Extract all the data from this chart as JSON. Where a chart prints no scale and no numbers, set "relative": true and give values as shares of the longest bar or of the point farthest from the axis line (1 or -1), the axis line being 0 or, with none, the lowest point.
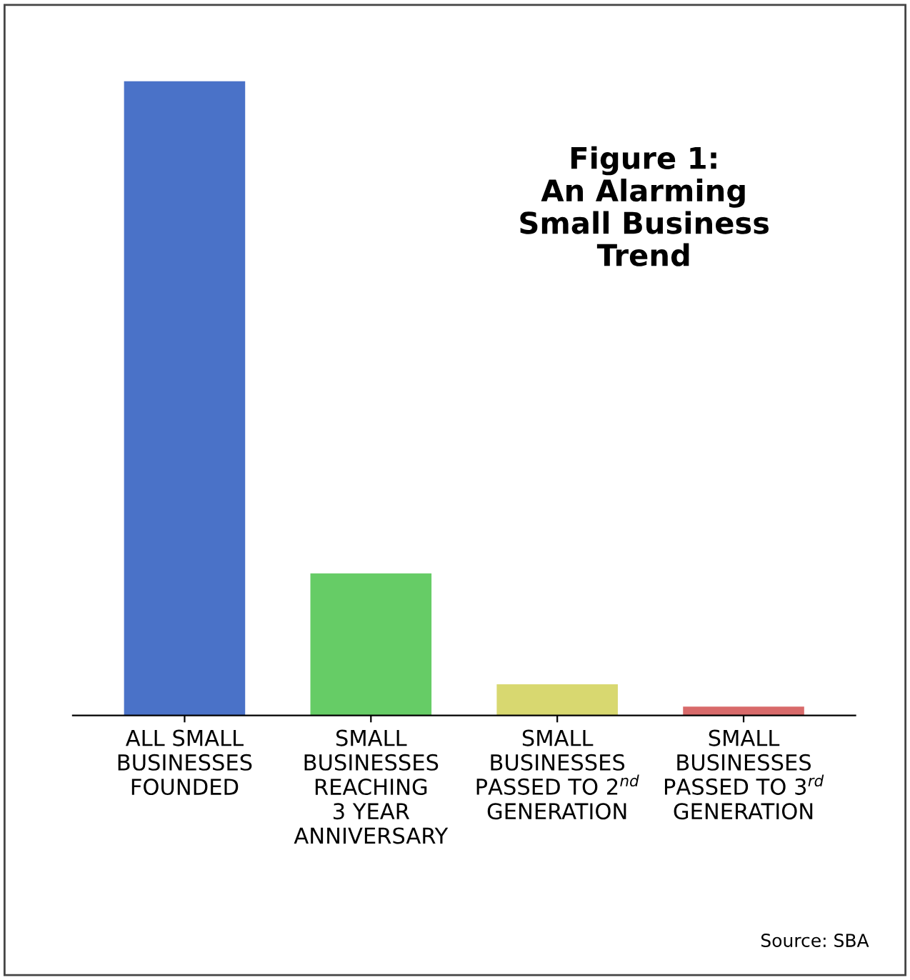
{
  "chart_data": {
    "type": "bar",
    "title": "Figure 1:\nAn Alarming\nSmall Business\nTrend",
    "categories": [
      "ALL SMALL\nBUSINESSES\nFOUNDED",
      "SMALL\nBUSINESSES\nREACHING\n3 YEAR\nANNIVERSARY",
      "SMALL\nBUSINESSES\nPASSED TO 2$^{nd}$\nGENERATION",
      "SMALL\nBUSINESSES\nPASSED TO 3$^{rd}$\nGENERATION"
    ],
    "values": [
      1,
      0.224,
      0.049,
      0.014
    ],
    "colors": [
      "#4a72c8",
      "#66cc66",
      "#d8d870",
      "#d86a6a"
    ],
    "relative": true,
    "annotations": [
      "Source: SBA"
    ]
  }
}
